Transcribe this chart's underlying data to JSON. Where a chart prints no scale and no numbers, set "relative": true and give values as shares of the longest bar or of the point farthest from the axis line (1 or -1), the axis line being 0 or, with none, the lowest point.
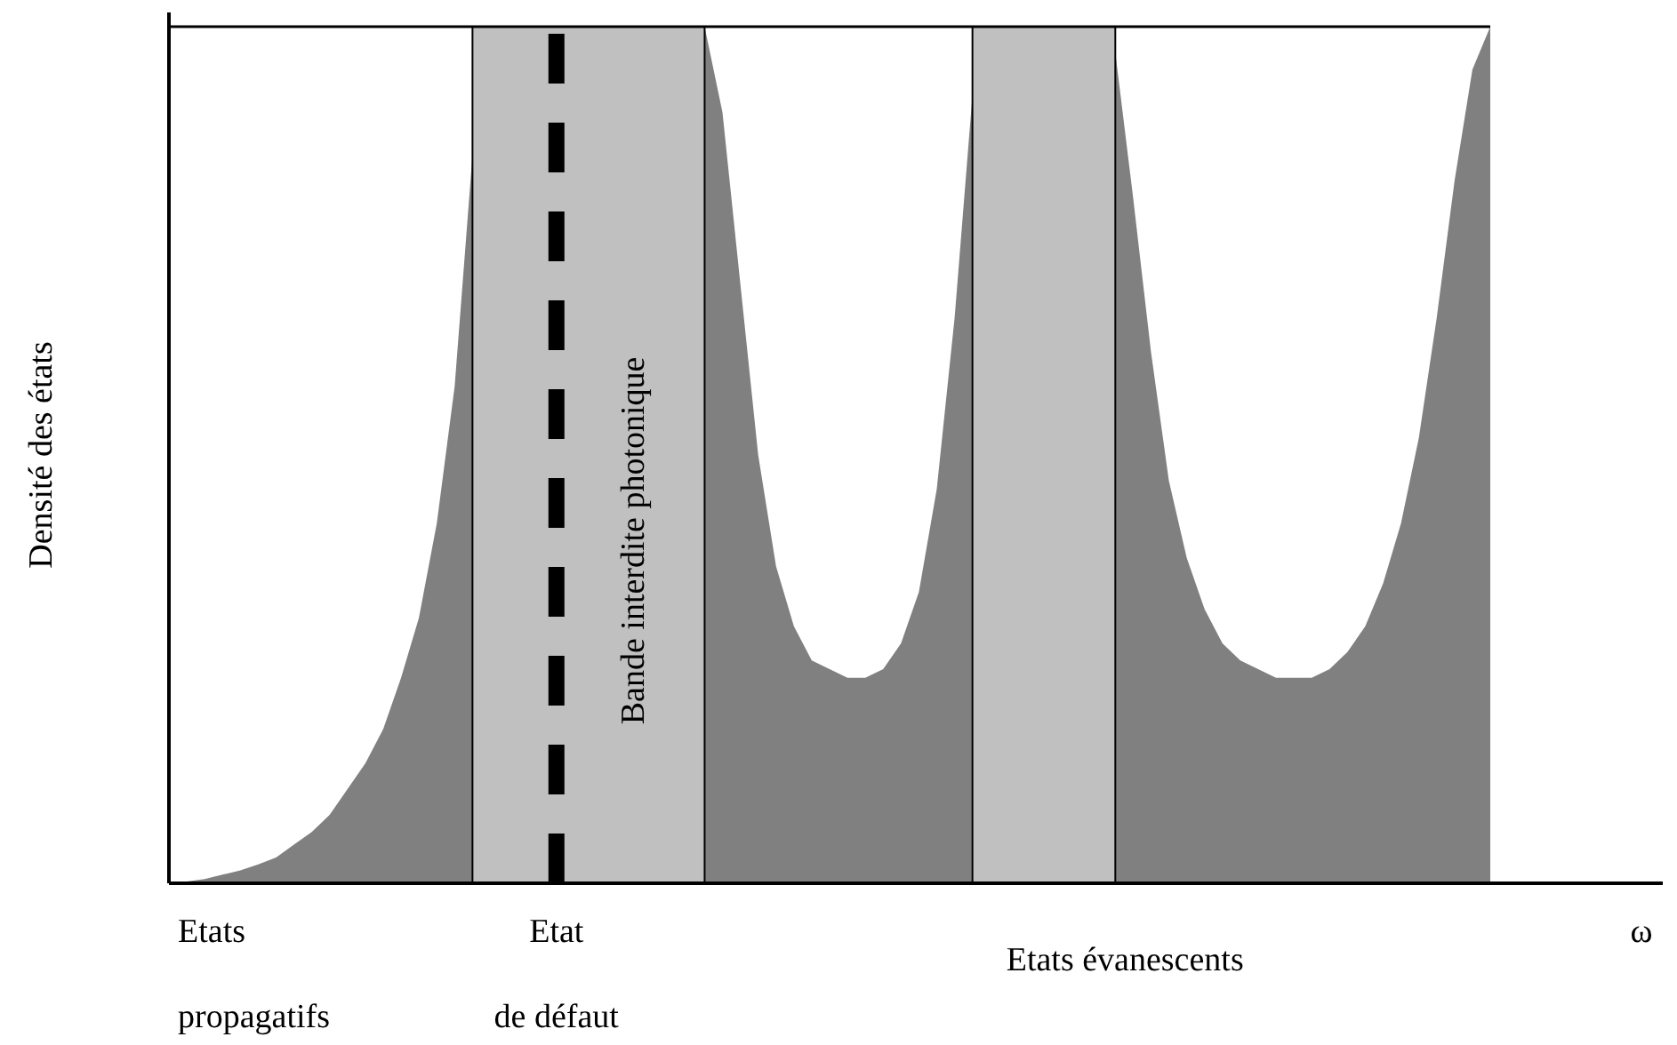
{
  "chart_data": {
    "type": "area",
    "relative": true,
    "ylabel": "Densité des états",
    "xlabel": "ω",
    "categories": [
      null,
      null,
      null,
      null,
      null,
      null,
      null,
      null,
      null,
      null,
      null,
      null,
      null,
      null,
      null,
      null,
      null,
      null,
      null,
      null,
      null,
      null,
      null,
      null,
      null,
      null,
      null,
      null,
      null,
      null,
      null,
      null,
      null,
      null,
      null,
      null,
      null,
      null,
      null,
      null,
      null,
      null,
      null,
      null,
      null,
      null,
      null,
      null,
      null,
      null,
      null,
      null,
      null,
      null,
      null,
      null,
      null,
      null,
      null,
      null,
      null,
      null,
      null,
      null,
      null,
      null,
      null,
      null,
      null,
      null,
      null,
      null,
      null,
      null,
      null
    ],
    "series": [
      {
        "color": "#808080",
        "values": [
          0,
          0.002,
          0.005,
          0.01,
          0.015,
          0.022,
          0.03,
          0.045,
          0.06,
          0.08,
          0.11,
          0.14,
          0.18,
          0.24,
          0.31,
          0.42,
          0.58,
          0.85,
          0,
          0,
          0,
          0,
          0,
          0,
          0,
          0,
          0,
          0,
          0,
          0,
          1,
          0.9,
          0.7,
          0.5,
          0.37,
          0.3,
          0.26,
          0.25,
          0.24,
          0.24,
          0.25,
          0.28,
          0.34,
          0.46,
          0.66,
          0.92,
          0,
          0,
          0,
          0,
          0,
          0,
          0,
          0.97,
          0.8,
          0.62,
          0.47,
          0.38,
          0.32,
          0.28,
          0.26,
          0.25,
          0.24,
          0.24,
          0.24,
          0.25,
          0.27,
          0.3,
          0.35,
          0.42,
          0.52,
          0.66,
          0.82,
          0.95,
          1
        ]
      }
    ],
    "annotations": [
      "Bande interdite photonique",
      "Etat\nde défaut",
      "Etats\npropagatifs",
      "Etats évanescents"
    ]
  }
}
